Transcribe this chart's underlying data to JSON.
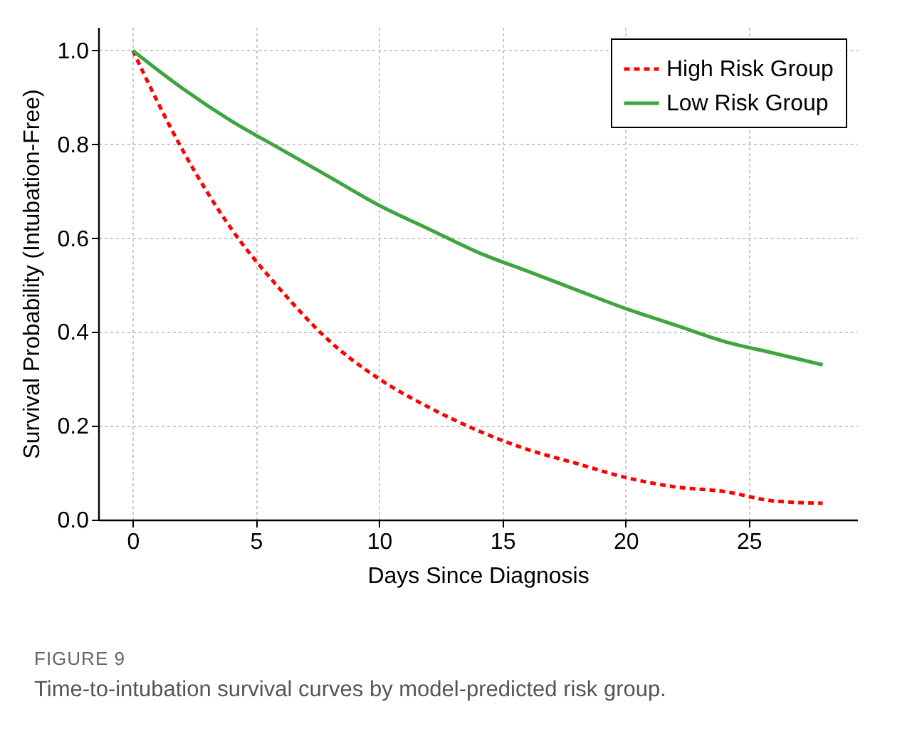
{
  "chart_data": {
    "type": "line",
    "xlabel": "Days Since Diagnosis",
    "ylabel": "Survival Probability (Intubation-Free)",
    "x": [
      0,
      2,
      4,
      6,
      8,
      10,
      12,
      14,
      16,
      18,
      20,
      22,
      24,
      26,
      28
    ],
    "series": [
      {
        "name": "High Risk Group",
        "color": "#ff0000",
        "line_style": "dashed",
        "values": [
          1.0,
          0.79,
          0.62,
          0.49,
          0.38,
          0.3,
          0.24,
          0.19,
          0.15,
          0.12,
          0.09,
          0.07,
          0.06,
          0.04,
          0.035
        ]
      },
      {
        "name": "Low Risk Group",
        "color": "#3fa53f",
        "line_style": "solid",
        "values": [
          1.0,
          0.92,
          0.85,
          0.79,
          0.73,
          0.67,
          0.62,
          0.57,
          0.53,
          0.49,
          0.45,
          0.415,
          0.38,
          0.355,
          0.33
        ]
      }
    ],
    "xlim": [
      -1.4,
      29.4
    ],
    "xticks": [
      0,
      5,
      10,
      15,
      20,
      25
    ],
    "ylim": [
      0,
      1.05
    ],
    "yticks": [
      {
        "value": 0,
        "label": "0.0"
      },
      {
        "value": 0.2,
        "label": "0.2"
      },
      {
        "value": 0.4,
        "label": "0.4"
      },
      {
        "value": 0.6,
        "label": "0.6"
      },
      {
        "value": 0.8,
        "label": "0.8"
      },
      {
        "value": 1,
        "label": "1.0"
      }
    ],
    "grid": true,
    "legend": "top right",
    "marker": "none",
    "annotations": [
      "FIGURE 9",
      "Time-to-intubation survival curves by model-predicted risk group."
    ]
  }
}
